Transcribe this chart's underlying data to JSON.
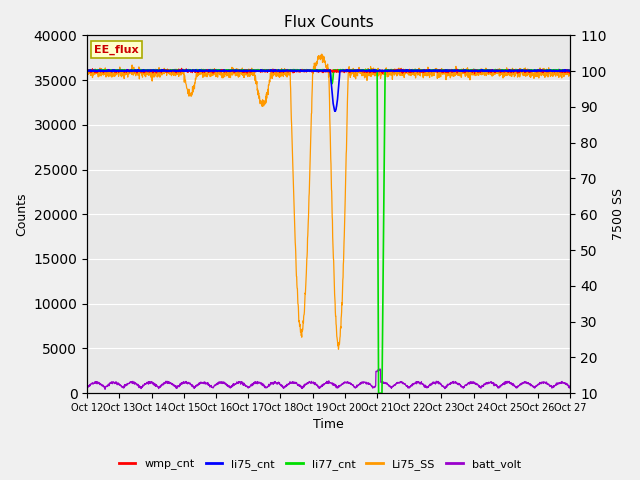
{
  "title": "Flux Counts",
  "xlabel": "Time",
  "ylabel_left": "Counts",
  "ylabel_right": "7500 SS",
  "annotation": "EE_flux",
  "x_tick_labels": [
    "Oct 12",
    "Oct 13",
    "Oct 14",
    "Oct 15",
    "Oct 16",
    "Oct 17",
    "Oct 18",
    "Oct 19",
    "Oct 20",
    "Oct 21",
    "Oct 22",
    "Oct 23",
    "Oct 24",
    "Oct 25",
    "Oct 26",
    "Oct 27"
  ],
  "n_days": 16,
  "ylim_left": [
    0,
    40000
  ],
  "ylim_right": [
    10,
    110
  ],
  "yticks_left": [
    0,
    5000,
    10000,
    15000,
    20000,
    25000,
    30000,
    35000,
    40000
  ],
  "yticks_right": [
    10,
    20,
    30,
    40,
    50,
    60,
    70,
    80,
    90,
    100,
    110
  ],
  "plot_bg_color": "#e8e8e8",
  "fig_bg_color": "#f0f0f0",
  "colors": {
    "wmp_cnt": "#ff0000",
    "li75_cnt": "#0000ff",
    "li77_cnt": "#00dd00",
    "Li75_SS": "#ff9900",
    "batt_volt": "#9900cc"
  },
  "legend_entries": [
    "wmp_cnt",
    "li75_cnt",
    "li77_cnt",
    "Li75_SS",
    "batt_volt"
  ],
  "base_level": 36000,
  "batt_base": 600,
  "batt_amp": 600
}
